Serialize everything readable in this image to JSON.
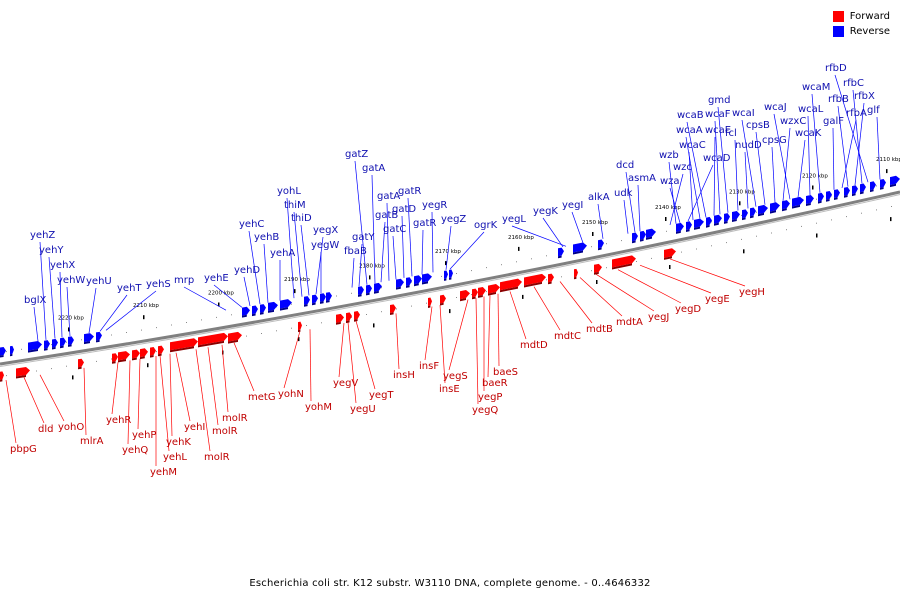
{
  "legend": {
    "forward_label": "Forward",
    "reverse_label": "Reverse",
    "forward_color": "#ff0000",
    "reverse_color": "#0000ff"
  },
  "caption": "Escherichia coli str. K12 substr. W3110 DNA, complete genome. - 0..4646332",
  "colors": {
    "axis": "#7f7f7f",
    "forward": "#ff0000",
    "reverse": "#0000ff",
    "forward_text": "#c00000",
    "reverse_text": "#1010b0"
  },
  "scale_ticks": [
    "2110 kbp",
    "2120 kbp",
    "2130 kbp",
    "2140 kbp",
    "2150 kbp",
    "2160 kbp",
    "2170 kbp",
    "2180 kbp",
    "2190 kbp",
    "2200 kbp",
    "2210 kbp",
    "2220 kbp"
  ],
  "reverse_genes": [
    "rfbD",
    "rfbC",
    "rfbX",
    "glf",
    "rfbB",
    "rfbA",
    "galF",
    "wcaM",
    "wcaL",
    "wcaK",
    "wcaJ",
    "wzxC",
    "cpsG",
    "cpsB",
    "wcaI",
    "nudD",
    "fcl",
    "gmd",
    "wcaF",
    "wcaE",
    "wcaB",
    "wcaA",
    "wcaC",
    "wcaD",
    "wza",
    "wzb",
    "wzc",
    "asmA",
    "dcd",
    "udk",
    "alkA",
    "yegI",
    "yegK",
    "yegL",
    "ogrK",
    "yegZ",
    "yegR",
    "gatR",
    "gatR",
    "gatD",
    "gatC",
    "gatA",
    "gatB",
    "gatA",
    "gatZ",
    "gatY",
    "fbaB",
    "yegW",
    "yegX",
    "thiD",
    "thiM",
    "yohL",
    "yehA",
    "yehB",
    "yehC",
    "yehD",
    "yehE",
    "mrp",
    "yehS",
    "yehT",
    "yehU",
    "yehW",
    "yehX",
    "yehY",
    "yehZ",
    "bglX"
  ],
  "forward_genes": [
    "yegH",
    "yegE",
    "yegD",
    "yegJ",
    "mdtA",
    "mdtB",
    "mdtC",
    "mdtD",
    "baeS",
    "baeR",
    "yegP",
    "yegQ",
    "yegS",
    "insE",
    "insF",
    "insH",
    "yegT",
    "yegU",
    "yegV",
    "yohM",
    "yohN",
    "metG",
    "molR",
    "molR",
    "molR",
    "yehI",
    "yehK",
    "yehL",
    "yehM",
    "yehP",
    "yehQ",
    "yehR",
    "mlrA",
    "yohO",
    "dld",
    "pbpG"
  ]
}
